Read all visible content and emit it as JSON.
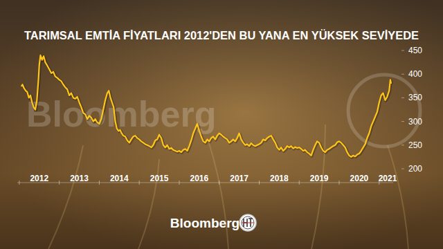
{
  "chart_data": {
    "type": "line",
    "title": "TARIMSAL EMTİA FİYATLARI 2012'DEN BU YANA EN YÜKSEK SEVİYEDE",
    "watermark": "Bloomberg",
    "source": "Bloomberg",
    "color": "#ffc61a",
    "grid": false,
    "xlim": [
      2011.95,
      2021.35
    ],
    "xticks": [
      2012,
      2013,
      2014,
      2015,
      2016,
      2017,
      2018,
      2019,
      2020,
      2021
    ],
    "ylim": [
      200,
      450
    ],
    "yticks": [
      200,
      250,
      300,
      350,
      400,
      450
    ],
    "x": [
      2012.05,
      2012.08,
      2012.12,
      2012.16,
      2012.2,
      2012.24,
      2012.28,
      2012.32,
      2012.36,
      2012.4,
      2012.44,
      2012.48,
      2012.5,
      2012.53,
      2012.57,
      2012.61,
      2012.65,
      2012.7,
      2012.75,
      2012.8,
      2012.85,
      2012.9,
      2012.95,
      2013.0,
      2013.05,
      2013.1,
      2013.15,
      2013.2,
      2013.25,
      2013.3,
      2013.35,
      2013.4,
      2013.45,
      2013.5,
      2013.55,
      2013.6,
      2013.65,
      2013.7,
      2013.75,
      2013.8,
      2013.85,
      2013.9,
      2013.95,
      2014.0,
      2014.05,
      2014.1,
      2014.15,
      2014.2,
      2014.24,
      2014.28,
      2014.32,
      2014.36,
      2014.4,
      2014.44,
      2014.48,
      2014.52,
      2014.56,
      2014.6,
      2014.65,
      2014.7,
      2014.75,
      2014.8,
      2014.85,
      2014.9,
      2014.95,
      2015.0,
      2015.05,
      2015.1,
      2015.15,
      2015.2,
      2015.25,
      2015.3,
      2015.35,
      2015.4,
      2015.45,
      2015.5,
      2015.55,
      2015.6,
      2015.65,
      2015.7,
      2015.75,
      2015.8,
      2015.85,
      2015.9,
      2015.95,
      2016.0,
      2016.05,
      2016.1,
      2016.15,
      2016.2,
      2016.25,
      2016.3,
      2016.35,
      2016.4,
      2016.45,
      2016.5,
      2016.55,
      2016.6,
      2016.65,
      2016.7,
      2016.75,
      2016.8,
      2016.85,
      2016.9,
      2016.95,
      2017.0,
      2017.05,
      2017.1,
      2017.15,
      2017.2,
      2017.25,
      2017.3,
      2017.35,
      2017.4,
      2017.45,
      2017.5,
      2017.55,
      2017.6,
      2017.65,
      2017.7,
      2017.75,
      2017.8,
      2017.85,
      2017.9,
      2017.95,
      2018.0,
      2018.05,
      2018.1,
      2018.15,
      2018.2,
      2018.25,
      2018.3,
      2018.35,
      2018.4,
      2018.45,
      2018.5,
      2018.55,
      2018.6,
      2018.65,
      2018.7,
      2018.75,
      2018.8,
      2018.85,
      2018.9,
      2018.95,
      2019.0,
      2019.05,
      2019.1,
      2019.15,
      2019.2,
      2019.25,
      2019.3,
      2019.35,
      2019.4,
      2019.45,
      2019.5,
      2019.55,
      2019.6,
      2019.65,
      2019.7,
      2019.75,
      2019.8,
      2019.85,
      2019.9,
      2019.95,
      2020.0,
      2020.05,
      2020.1,
      2020.15,
      2020.2,
      2020.25,
      2020.3,
      2020.35,
      2020.4,
      2020.45,
      2020.5,
      2020.55,
      2020.6,
      2020.65,
      2020.7,
      2020.75,
      2020.8,
      2020.85,
      2020.9,
      2020.95,
      2021.0,
      2021.05,
      2021.1,
      2021.15,
      2021.2,
      2021.25,
      2021.28,
      2021.3
    ],
    "values": [
      374,
      378,
      370,
      365,
      362,
      350,
      355,
      340,
      330,
      325,
      345,
      390,
      420,
      440,
      430,
      438,
      425,
      418,
      410,
      402,
      405,
      395,
      392,
      388,
      385,
      378,
      372,
      368,
      355,
      360,
      350,
      348,
      352,
      340,
      330,
      318,
      315,
      305,
      312,
      308,
      300,
      305,
      298,
      295,
      305,
      325,
      345,
      360,
      365,
      350,
      340,
      330,
      300,
      285,
      280,
      282,
      275,
      270,
      268,
      260,
      255,
      262,
      268,
      270,
      265,
      262,
      258,
      255,
      252,
      250,
      248,
      245,
      250,
      260,
      262,
      272,
      265,
      250,
      245,
      250,
      242,
      244,
      240,
      238,
      236,
      238,
      235,
      240,
      242,
      238,
      248,
      260,
      275,
      285,
      295,
      280,
      268,
      258,
      255,
      262,
      258,
      265,
      268,
      262,
      270,
      275,
      272,
      268,
      265,
      262,
      255,
      258,
      262,
      258,
      265,
      275,
      262,
      255,
      250,
      252,
      248,
      254,
      250,
      248,
      250,
      252,
      255,
      262,
      260,
      265,
      268,
      270,
      262,
      255,
      245,
      240,
      245,
      238,
      242,
      248,
      245,
      248,
      243,
      246,
      244,
      245,
      242,
      238,
      240,
      235,
      232,
      228,
      240,
      250,
      258,
      255,
      245,
      238,
      235,
      240,
      242,
      245,
      248,
      250,
      256,
      258,
      255,
      250,
      245,
      235,
      228,
      225,
      228,
      226,
      230,
      232,
      238,
      245,
      252,
      265,
      275,
      290,
      300,
      310,
      320,
      340,
      355,
      360,
      345,
      352,
      365,
      388,
      380
    ]
  }
}
